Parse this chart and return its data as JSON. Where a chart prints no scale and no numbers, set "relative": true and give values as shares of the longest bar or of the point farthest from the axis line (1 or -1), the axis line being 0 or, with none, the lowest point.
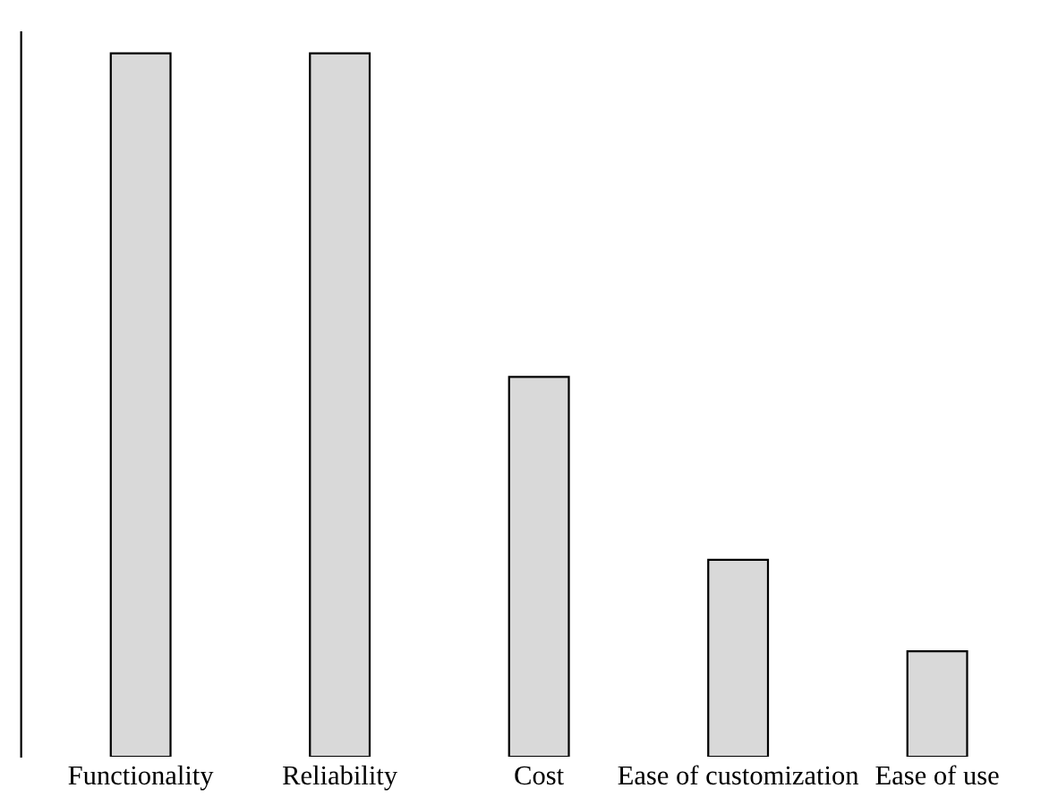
{
  "chart_data": {
    "type": "bar",
    "relative": true,
    "categories": [
      "Functionality",
      "Reliability",
      "Cost",
      "Ease of customization",
      "Ease of use"
    ],
    "values": [
      1,
      1,
      0.54,
      0.28,
      0.15
    ],
    "color": "#d9d9d9",
    "grid": false,
    "legend": false
  }
}
